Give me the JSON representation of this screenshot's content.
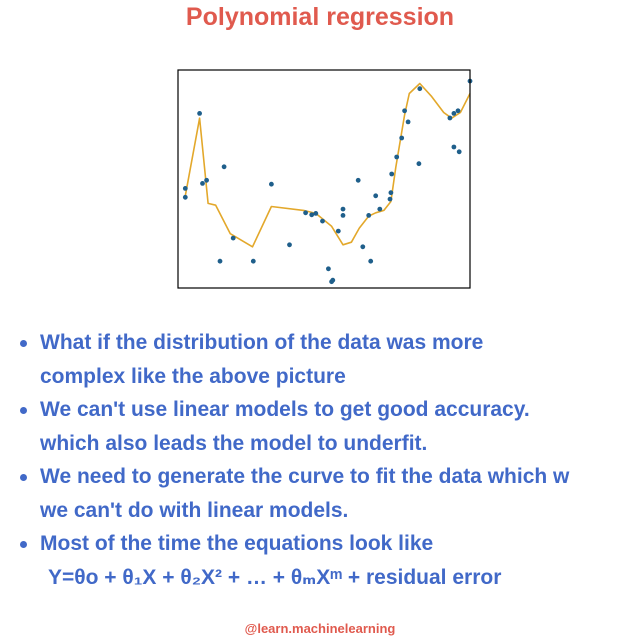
{
  "page": {
    "title": "Polynomial regression",
    "credit": "@learn.machinelearning"
  },
  "colors": {
    "title": "#e05a4e",
    "bullet_text": "#4169c8",
    "credit": "#e05a4e",
    "fit_curve": "#e3a82b",
    "points": "#1f5f8b",
    "axes": "#000000"
  },
  "bullets": [
    {
      "lines": [
        "What if the distribution of the data was more",
        "complex like the above picture"
      ]
    },
    {
      "lines": [
        "We can't use linear models to get good accuracy.",
        "which also leads the model to underfit."
      ]
    },
    {
      "lines": [
        "We need to generate the curve to fit the data which w",
        "we can't do with linear models."
      ]
    },
    {
      "lines": [
        "Most of the time the equations look like",
        "Y=θo + θ₁X + θ₂X² + … + θₘXᵐ + residual error"
      ]
    }
  ],
  "chart_data": {
    "type": "scatter",
    "title": "",
    "xlabel": "",
    "ylabel": "",
    "ticks_shown": false,
    "xlim": [
      0,
      100
    ],
    "ylim": [
      0,
      100
    ],
    "series": [
      {
        "kind": "scatter",
        "points": [
          [
            2.5,
            45.7
          ],
          [
            2.5,
            41.6
          ],
          [
            7.4,
            80.1
          ],
          [
            8.4,
            48.0
          ],
          [
            9.8,
            49.4
          ],
          [
            14.4,
            12.3
          ],
          [
            15.8,
            55.6
          ],
          [
            18.9,
            22.9
          ],
          [
            25.8,
            12.3
          ],
          [
            32.0,
            47.6
          ],
          [
            38.2,
            19.8
          ],
          [
            43.7,
            34.5
          ],
          [
            45.8,
            33.6
          ],
          [
            47.2,
            34.2
          ],
          [
            49.5,
            30.7
          ],
          [
            51.5,
            8.8
          ],
          [
            52.6,
            2.9
          ],
          [
            53.0,
            3.6
          ],
          [
            54.9,
            26.1
          ],
          [
            56.5,
            36.2
          ],
          [
            56.5,
            33.3
          ],
          [
            61.7,
            49.4
          ],
          [
            63.3,
            18.9
          ],
          [
            65.3,
            33.3
          ],
          [
            66.0,
            12.3
          ],
          [
            67.7,
            42.3
          ],
          [
            69.1,
            36.2
          ],
          [
            72.6,
            40.8
          ],
          [
            72.9,
            43.7
          ],
          [
            73.2,
            52.3
          ],
          [
            74.9,
            60.1
          ],
          [
            76.6,
            68.8
          ],
          [
            77.6,
            81.3
          ],
          [
            78.8,
            76.2
          ],
          [
            82.5,
            57.0
          ],
          [
            82.8,
            91.4
          ],
          [
            93.1,
            78.0
          ],
          [
            94.5,
            80.1
          ],
          [
            94.5,
            64.7
          ],
          [
            95.9,
            81.3
          ],
          [
            96.3,
            62.5
          ],
          [
            100.0,
            94.9
          ]
        ]
      },
      {
        "kind": "line",
        "points": [
          [
            2.5,
            42.3
          ],
          [
            7.4,
            77.9
          ],
          [
            10.3,
            38.8
          ],
          [
            12.9,
            38.0
          ],
          [
            17.9,
            24.9
          ],
          [
            25.5,
            18.9
          ],
          [
            32.0,
            37.4
          ],
          [
            43.0,
            35.6
          ],
          [
            47.2,
            34.2
          ],
          [
            52.6,
            28.3
          ],
          [
            56.5,
            19.8
          ],
          [
            59.4,
            21.0
          ],
          [
            62.1,
            27.5
          ],
          [
            65.3,
            33.0
          ],
          [
            67.7,
            34.5
          ],
          [
            70.5,
            35.6
          ],
          [
            72.9,
            39.7
          ],
          [
            74.6,
            55.4
          ],
          [
            77.6,
            79.4
          ],
          [
            79.2,
            89.2
          ],
          [
            82.8,
            93.8
          ],
          [
            86.9,
            87.8
          ],
          [
            91.0,
            80.5
          ],
          [
            93.7,
            77.9
          ],
          [
            96.7,
            80.5
          ],
          [
            100.0,
            89.2
          ]
        ]
      }
    ]
  }
}
